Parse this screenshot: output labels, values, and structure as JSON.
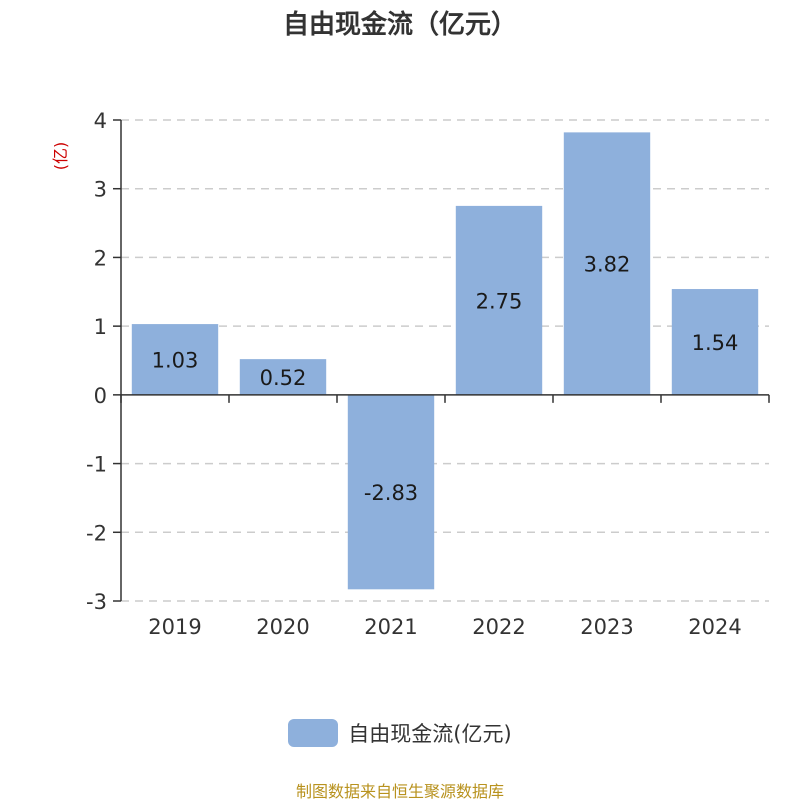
{
  "title": "自由现金流（亿元）",
  "source": "制图数据来自恒生聚源数据库",
  "chart_data": {
    "type": "bar",
    "categories": [
      "2019",
      "2020",
      "2021",
      "2022",
      "2023",
      "2024"
    ],
    "series": [
      {
        "name": "自由现金流(亿元)",
        "values": [
          1.03,
          0.52,
          -2.83,
          2.75,
          3.82,
          1.54
        ]
      }
    ],
    "ylabel": "(亿)",
    "ylim": [
      -3,
      4
    ],
    "yticks": [
      -3,
      -2,
      -1,
      0,
      1,
      2,
      3,
      4
    ],
    "grid": true,
    "legend_position": "bottom",
    "bar_color": "#8eb0dc",
    "ylabel_color": "#cc0000"
  }
}
